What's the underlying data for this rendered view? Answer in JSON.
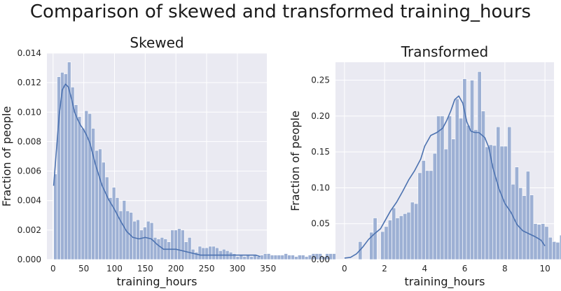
{
  "figure": {
    "suptitle": "Comparison of skewed and transformed training_hours"
  },
  "chart_data": [
    {
      "type": "bar",
      "title": "Skewed",
      "xlabel": "training_hours",
      "ylabel": "Fraction of people",
      "xlim": [
        -10,
        348
      ],
      "ylim": [
        0,
        0.014
      ],
      "xticks": [
        0,
        50,
        100,
        150,
        200,
        250,
        300,
        350
      ],
      "yticks": [
        0.0,
        0.002,
        0.004,
        0.006,
        0.008,
        0.01,
        0.012,
        0.014
      ],
      "ytick_labels": [
        "0.000",
        "0.002",
        "0.004",
        "0.006",
        "0.008",
        "0.010",
        "0.012",
        "0.014"
      ],
      "bin_start": 1,
      "bin_width": 5.6,
      "values": [
        0.0058,
        0.0124,
        0.0127,
        0.0126,
        0.0134,
        0.0117,
        0.0105,
        0.0097,
        0.0089,
        0.0101,
        0.0099,
        0.0089,
        0.0074,
        0.0075,
        0.0066,
        0.0056,
        0.0042,
        0.0049,
        0.0042,
        0.0033,
        0.004,
        0.0033,
        0.0032,
        0.0026,
        0.0027,
        0.002,
        0.0022,
        0.0026,
        0.0025,
        0.0015,
        0.0014,
        0.0015,
        0.0014,
        0.0012,
        0.002,
        0.002,
        0.0021,
        0.002,
        0.0012,
        0.0015,
        0.0007,
        0.0005,
        0.0009,
        0.0008,
        0.0008,
        0.0009,
        0.0009,
        0.0008,
        0.0006,
        0.0007,
        0.0006,
        0.0005,
        0.0004,
        0.0002,
        0.0003,
        0.0002,
        0.0003,
        0.0002,
        0.0003,
        0.0002,
        0.0003,
        0.0004,
        0.0004,
        0.0003,
        0.0003,
        0.0003,
        0.0003,
        0.0004,
        0.0003,
        0.0003,
        0.0002,
        0.0003,
        0.0003,
        0.0002,
        0.0003,
        0.0004,
        0.0004,
        0.0004,
        0.0002,
        0.0004,
        0.0004,
        0.0004,
        0.0004,
        0.0002,
        0.0004,
        0.0004,
        0.0003,
        0.0003,
        0.0003,
        0.0003
      ],
      "kde": {
        "x": [
          1,
          10,
          15,
          20,
          25,
          30,
          35,
          40,
          45,
          50,
          55,
          60,
          65,
          70,
          80,
          90,
          100,
          110,
          120,
          130,
          140,
          150,
          160,
          170,
          180,
          190,
          200,
          210,
          220,
          230,
          240,
          250,
          260,
          270,
          280,
          290,
          300,
          310,
          320,
          330,
          337
        ],
        "y": [
          0.005,
          0.0098,
          0.0115,
          0.0119,
          0.0117,
          0.0109,
          0.01,
          0.0095,
          0.0091,
          0.0088,
          0.0084,
          0.0079,
          0.0071,
          0.0063,
          0.005,
          0.0041,
          0.0034,
          0.0026,
          0.0019,
          0.0015,
          0.0014,
          0.0015,
          0.0014,
          0.001,
          0.0007,
          0.0007,
          0.0007,
          0.0006,
          0.0005,
          0.0004,
          0.0003,
          0.0003,
          0.0003,
          0.0003,
          0.0003,
          0.0003,
          0.0003,
          0.0003,
          0.0003,
          0.0003,
          0.0002
        ]
      },
      "color": "#4c72b0",
      "bar_color": "#9db0d4",
      "background": "#eaeaf2",
      "grid": true
    },
    {
      "type": "bar",
      "title": "Transformed",
      "xlabel": "training_hours",
      "ylabel": "Fraction of people",
      "xlim": [
        -0.45,
        10.45
      ],
      "ylim": [
        0,
        0.275
      ],
      "xticks": [
        0,
        2,
        4,
        6,
        8,
        10
      ],
      "yticks": [
        0.0,
        0.05,
        0.1,
        0.15,
        0.2,
        0.25
      ],
      "ytick_labels": [
        "0.00",
        "0.05",
        "0.10",
        "0.15",
        "0.20",
        "0.25"
      ],
      "bin_start": 0.69,
      "bin_width": 0.186,
      "values": [
        0.025,
        0.0,
        0.0,
        0.038,
        0.058,
        0.0,
        0.039,
        0.046,
        0.055,
        0.072,
        0.058,
        0.061,
        0.064,
        0.066,
        0.08,
        0.078,
        0.121,
        0.138,
        0.124,
        0.124,
        0.148,
        0.2,
        0.2,
        0.154,
        0.2,
        0.168,
        0.224,
        0.197,
        0.252,
        0.187,
        0.25,
        0.181,
        0.262,
        0.207,
        0.157,
        0.16,
        0.159,
        0.185,
        0.158,
        0.158,
        0.185,
        0.105,
        0.129,
        0.1,
        0.089,
        0.123,
        0.09,
        0.05,
        0.049,
        0.05,
        0.046,
        0.031,
        0.025,
        0.024,
        0.034
      ],
      "kde": {
        "x": [
          0.0,
          0.3,
          0.6,
          0.9,
          1.2,
          1.5,
          1.8,
          2.0,
          2.3,
          2.6,
          2.9,
          3.2,
          3.5,
          3.8,
          4.0,
          4.3,
          4.6,
          4.9,
          5.1,
          5.3,
          5.5,
          5.7,
          5.9,
          6.1,
          6.3,
          6.5,
          6.7,
          7.0,
          7.2,
          7.4,
          7.7,
          8.0,
          8.3,
          8.6,
          8.9,
          9.2,
          9.5,
          9.8,
          10.0
        ],
        "y": [
          0.002,
          0.003,
          0.008,
          0.017,
          0.028,
          0.036,
          0.043,
          0.053,
          0.068,
          0.08,
          0.095,
          0.111,
          0.124,
          0.14,
          0.158,
          0.173,
          0.177,
          0.183,
          0.194,
          0.207,
          0.223,
          0.228,
          0.218,
          0.192,
          0.179,
          0.177,
          0.177,
          0.17,
          0.156,
          0.128,
          0.099,
          0.078,
          0.066,
          0.049,
          0.04,
          0.036,
          0.032,
          0.027,
          0.019
        ]
      },
      "color": "#4c72b0",
      "bar_color": "#9db0d4",
      "background": "#eaeaf2",
      "grid": true
    }
  ]
}
